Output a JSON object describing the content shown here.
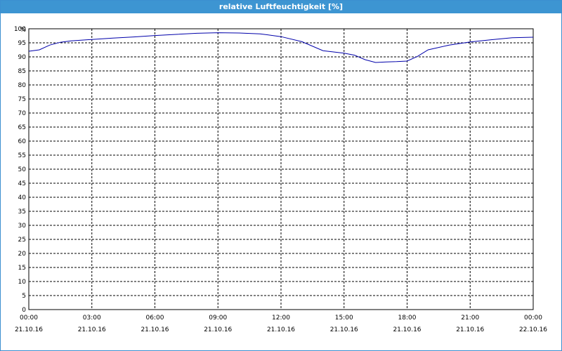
{
  "window": {
    "title": "relative Luftfeuchtigkeit [%]"
  },
  "chart_data": {
    "type": "line",
    "ylabel": "%",
    "ylim": [
      0,
      100
    ],
    "ytick_step": 5,
    "xticks": [
      {
        "time": "00:00",
        "date": "21.10.16"
      },
      {
        "time": "03:00",
        "date": "21.10.16"
      },
      {
        "time": "06:00",
        "date": "21.10.16"
      },
      {
        "time": "09:00",
        "date": "21.10.16"
      },
      {
        "time": "12:00",
        "date": "21.10.16"
      },
      {
        "time": "15:00",
        "date": "21.10.16"
      },
      {
        "time": "18:00",
        "date": "21.10.16"
      },
      {
        "time": "21:00",
        "date": "21.10.16"
      },
      {
        "time": "00:00",
        "date": "22.10.16"
      }
    ],
    "grid": true,
    "line_color": "#0000aa",
    "series": [
      {
        "x": [
          "21.10.16 00:00",
          "21.10.16 00:30",
          "21.10.16 01:00",
          "21.10.16 01:30",
          "21.10.16 02:00",
          "21.10.16 03:00",
          "21.10.16 04:00",
          "21.10.16 05:00",
          "21.10.16 06:00",
          "21.10.16 07:00",
          "21.10.16 08:00",
          "21.10.16 09:00",
          "21.10.16 10:00",
          "21.10.16 11:00",
          "21.10.16 12:00",
          "21.10.16 13:00",
          "21.10.16 14:00",
          "21.10.16 15:00",
          "21.10.16 15:30",
          "21.10.16 16:00",
          "21.10.16 16:30",
          "21.10.16 17:00",
          "21.10.16 17:30",
          "21.10.16 18:00",
          "21.10.16 18:30",
          "21.10.16 19:00",
          "21.10.16 20:00",
          "21.10.16 21:00",
          "21.10.16 22:00",
          "21.10.16 23:00",
          "22.10.16 00:00"
        ],
        "values": [
          92,
          92.5,
          94.2,
          95.2,
          95.7,
          96.2,
          96.7,
          97.1,
          97.6,
          98.0,
          98.4,
          98.6,
          98.5,
          98.2,
          97.2,
          95.4,
          92.2,
          91.3,
          90.6,
          89.0,
          88.0,
          88.2,
          88.3,
          88.5,
          90.2,
          92.5,
          94.2,
          95.3,
          96.1,
          96.8,
          97.0
        ]
      }
    ]
  }
}
